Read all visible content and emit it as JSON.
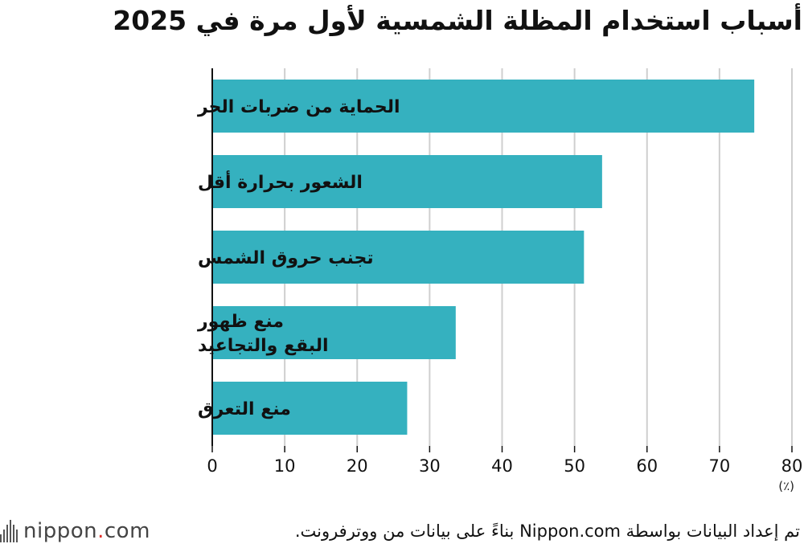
{
  "header": {
    "title": "أسباب استخدام المظلة الشمسية لأول مرة في 2025"
  },
  "chart_data": {
    "type": "bar",
    "orientation": "horizontal",
    "title": "أسباب استخدام المظلة الشمسية لأول مرة في 2025",
    "categories": [
      [
        "الحماية من ضربات الحر"
      ],
      [
        "الشعور بحرارة أقل"
      ],
      [
        "تجنب حروق الشمس"
      ],
      [
        "منع ظهور",
        "البقع والتجاعيد"
      ],
      [
        "منع التعرق"
      ]
    ],
    "values": [
      74.8,
      53.8,
      51.3,
      33.6,
      26.9
    ],
    "xlim": [
      0,
      80
    ],
    "xticks": [
      "0",
      "10",
      "20",
      "30",
      "40",
      "50",
      "60",
      "70",
      "80"
    ],
    "unit_label": "(٪)",
    "bar_color": "#35b1bf",
    "grid": true
  },
  "footer": {
    "logo_text": "nippon",
    "logo_dot": ".",
    "logo_suffix": "com",
    "source": "تم إعداد البيانات بواسطة Nippon.com بناءً على بيانات من ووترفرونت."
  }
}
